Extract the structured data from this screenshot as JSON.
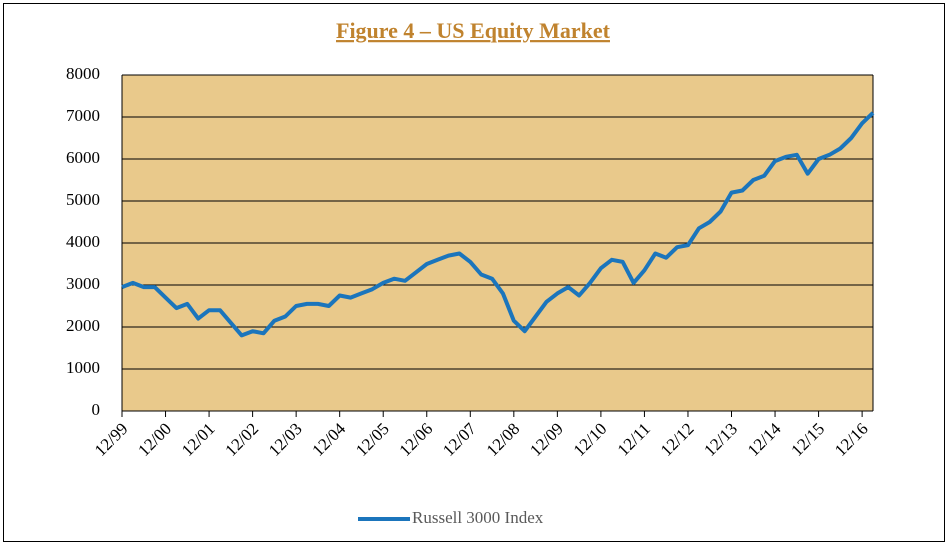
{
  "chart_data": {
    "type": "line",
    "title": "Figure 4 – US Equity Market",
    "categories": [
      "12/99",
      null,
      null,
      null,
      "12/00",
      null,
      null,
      null,
      "12/01",
      null,
      null,
      null,
      "12/02",
      null,
      null,
      null,
      "12/03",
      null,
      null,
      null,
      "12/04",
      null,
      null,
      null,
      "12/05",
      null,
      null,
      null,
      "12/06",
      null,
      null,
      null,
      "12/07",
      null,
      null,
      null,
      "12/08",
      null,
      null,
      null,
      "12/09",
      null,
      null,
      null,
      "12/10",
      null,
      null,
      null,
      "12/11",
      null,
      null,
      null,
      "12/12",
      null,
      null,
      null,
      "12/13",
      null,
      null,
      null,
      "12/14",
      null,
      null,
      null,
      "12/15",
      null,
      null,
      null,
      "12/16",
      null
    ],
    "series": [
      {
        "name": "Russell 3000 Index",
        "color": "#1b75bc",
        "values": [
          2950,
          3050,
          2950,
          2950,
          2700,
          2450,
          2550,
          2200,
          2400,
          2400,
          2100,
          1800,
          1900,
          1850,
          2150,
          2250,
          2500,
          2550,
          2550,
          2500,
          2750,
          2700,
          2800,
          2900,
          3050,
          3150,
          3100,
          3300,
          3500,
          3600,
          3700,
          3750,
          3550,
          3250,
          3150,
          2800,
          2150,
          1900,
          2250,
          2600,
          2800,
          2950,
          2750,
          3050,
          3400,
          3600,
          3550,
          3050,
          3350,
          3750,
          3650,
          3900,
          3950,
          4350,
          4500,
          4750,
          5200,
          5250,
          5500,
          5600,
          5950,
          6050,
          6100,
          5650,
          6000,
          6100,
          6250,
          6500,
          6850,
          7100
        ]
      }
    ],
    "ylim": [
      0,
      8000
    ],
    "yticks": [
      0,
      1000,
      2000,
      3000,
      4000,
      5000,
      6000,
      7000,
      8000
    ],
    "grid": true,
    "legend": "bottom"
  }
}
